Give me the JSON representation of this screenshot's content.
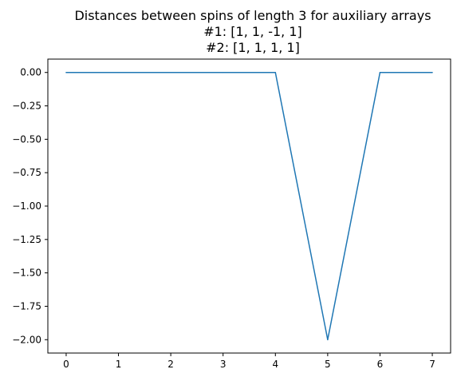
{
  "chart_data": {
    "type": "line",
    "title_lines": [
      "Distances between spins of length 3 for auxiliary arrays",
      "#1:  [1, 1, -1, 1]",
      "#2: [1, 1, 1, 1]"
    ],
    "xlabel": "",
    "ylabel": "",
    "x": [
      0,
      1,
      2,
      3,
      4,
      5,
      6,
      7
    ],
    "series": [
      {
        "values": [
          0,
          0,
          0,
          0,
          0,
          -2,
          0,
          0
        ],
        "color": "#1f77b4"
      }
    ],
    "xlim": [
      -0.35,
      7.35
    ],
    "ylim": [
      -2.1,
      0.1
    ],
    "x_ticks": [
      0,
      1,
      2,
      3,
      4,
      5,
      6,
      7
    ],
    "x_tick_labels": [
      "0",
      "1",
      "2",
      "3",
      "4",
      "5",
      "6",
      "7"
    ],
    "y_ticks": [
      0,
      -0.25,
      -0.5,
      -0.75,
      -1,
      -1.25,
      -1.5,
      -1.75,
      -2
    ],
    "y_tick_labels": [
      "0.00",
      "−0.25",
      "−0.50",
      "−0.75",
      "−1.00",
      "−1.25",
      "−1.50",
      "−1.75",
      "−2.00"
    ],
    "grid": false,
    "legend": "none"
  }
}
